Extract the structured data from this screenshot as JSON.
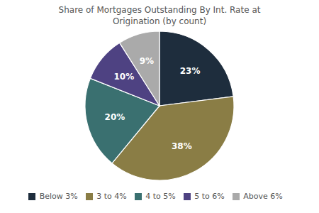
{
  "chart_data": {
    "type": "pie",
    "title": "Share of Mortgages Outstanding By Int. Rate at\nOrigination (by count)",
    "categories": [
      "Below 3%",
      "3 to 4%",
      "4 to 5%",
      "5 to 6%",
      "Above 6%"
    ],
    "values": [
      23,
      38,
      20,
      10,
      9
    ],
    "value_labels": [
      "23%",
      "38%",
      "20%",
      "10%",
      "9%"
    ],
    "colors": [
      "#1e2d3d",
      "#8a7d45",
      "#3a7070",
      "#4e4282",
      "#aaaaaa"
    ],
    "data_labels": true,
    "legend": "bottom"
  }
}
